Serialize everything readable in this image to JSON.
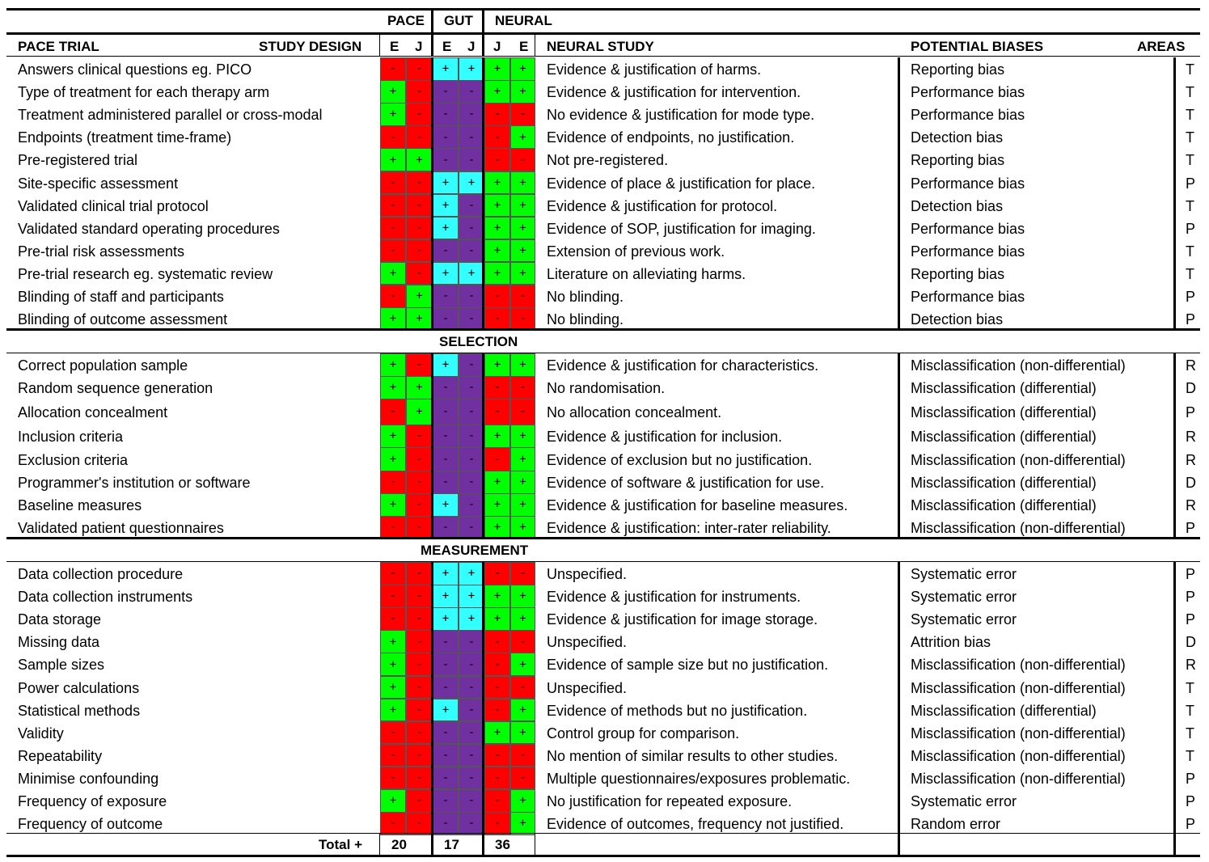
{
  "top_groups": {
    "pace": "PACE",
    "gut": "GUT",
    "neural": "NEURAL"
  },
  "headers": {
    "pace_trial": "PACE TRIAL",
    "study_design": "STUDY DESIGN",
    "e1": "E",
    "j1": "J",
    "e2": "E",
    "j2": "J",
    "j3": "J",
    "e3": "E",
    "neural_study": "NEURAL STUDY",
    "potential_biases": "POTENTIAL BIASES",
    "areas": "AREAS"
  },
  "colors": {
    "red": "#ff0000",
    "green": "#00ff00",
    "cyan": "#33ffff",
    "purple": "#7030a0",
    "line": "#000000"
  },
  "sections": [
    {
      "title": "",
      "rows": [
        {
          "label": "Answers clinical questions eg. PICO",
          "marks": [
            "-",
            "-",
            "+",
            "+",
            "+",
            "+"
          ],
          "neural": "Evidence & justification of harms.",
          "bias": "Reporting bias",
          "area": "T"
        },
        {
          "label": "Type of treatment for each therapy arm",
          "marks": [
            "+",
            "-",
            "-",
            "-",
            "+",
            "+"
          ],
          "neural": "Evidence & justification for intervention.",
          "bias": "Performance bias",
          "area": "T"
        },
        {
          "label": "Treatment administered parallel or cross-modal",
          "marks": [
            "+",
            "-",
            "-",
            "-",
            "-",
            "-"
          ],
          "neural": "No evidence & justification for mode type.",
          "bias": "Performance bias",
          "area": "T"
        },
        {
          "label": "Endpoints (treatment time-frame)",
          "marks": [
            "-",
            "-",
            "-",
            "-",
            "-",
            "+"
          ],
          "neural": "Evidence of endpoints, no justification.",
          "bias": "Detection bias",
          "area": "T"
        },
        {
          "label": "Pre-registered trial",
          "marks": [
            "+",
            "+",
            "-",
            "-",
            "-",
            "-"
          ],
          "neural": "Not pre-registered.",
          "bias": "Reporting bias",
          "area": "T"
        },
        {
          "label": "Site-specific assessment",
          "marks": [
            "-",
            "-",
            "+",
            "+",
            "+",
            "+"
          ],
          "neural": "Evidence of place & justification for place.",
          "bias": "Performance bias",
          "area": "P"
        },
        {
          "label": "Validated clinical trial protocol",
          "marks": [
            "-",
            "-",
            "+",
            "-",
            "+",
            "+"
          ],
          "neural": "Evidence & justification for protocol.",
          "bias": "Detection bias",
          "area": "T"
        },
        {
          "label": "Validated standard operating procedures",
          "marks": [
            "-",
            "-",
            "+",
            "-",
            "+",
            "+"
          ],
          "neural": "Evidence of SOP, justification for imaging.",
          "bias": "Performance bias",
          "area": "P"
        },
        {
          "label": "Pre-trial risk assessments",
          "marks": [
            "-",
            "-",
            "-",
            "-",
            "+",
            "+"
          ],
          "neural": "Extension of previous work.",
          "bias": "Performance bias",
          "area": "T"
        },
        {
          "label": "Pre-trial research eg. systematic review",
          "marks": [
            "+",
            "-",
            "+",
            "+",
            "+",
            "+"
          ],
          "neural": "Literature on alleviating harms.",
          "bias": "Reporting bias",
          "area": "T"
        },
        {
          "label": "Blinding of staff and participants",
          "marks": [
            "-",
            "+",
            "-",
            "-",
            "-",
            "-"
          ],
          "neural": "No blinding.",
          "bias": "Performance bias",
          "area": "P"
        },
        {
          "label": "Blinding of outcome assessment",
          "marks": [
            "+",
            "+",
            "-",
            "-",
            "-",
            "-"
          ],
          "neural": "No blinding.",
          "bias": "Detection bias",
          "area": "P"
        }
      ]
    },
    {
      "title": "SELECTION",
      "rows": [
        {
          "label": "Correct population sample",
          "marks": [
            "+",
            "-",
            "+",
            "-",
            "+",
            "+"
          ],
          "neural": "Evidence & justification for characteristics.",
          "bias": "Misclassification (non-differential)",
          "area": "R"
        },
        {
          "label": "Random sequence generation",
          "marks": [
            "+",
            "+",
            "-",
            "-",
            "-",
            "-"
          ],
          "neural": "No randomisation.",
          "bias": "Misclassification (differential)",
          "area": "D"
        },
        {
          "label": "Allocation concealment",
          "marks": [
            "-",
            "+",
            "-",
            "-",
            "-",
            "-"
          ],
          "neural": "No allocation concealment.",
          "bias": "Misclassification (differential)",
          "area": "P"
        },
        {
          "label": "Inclusion criteria",
          "marks": [
            "+",
            "-",
            "-",
            "-",
            "+",
            "+"
          ],
          "neural": "Evidence & justification for inclusion.",
          "bias": "Misclassification (differential)",
          "area": "R"
        },
        {
          "label": "Exclusion criteria",
          "marks": [
            "+",
            "-",
            "-",
            "-",
            "-",
            "+"
          ],
          "neural": "Evidence of exclusion but no justification.",
          "bias": "Misclassification (non-differential)",
          "area": "R"
        },
        {
          "label": "Programmer's institution or software",
          "marks": [
            "-",
            "-",
            "-",
            "-",
            "+",
            "+"
          ],
          "neural": "Evidence of software & justification for use.",
          "bias": "Misclassification (differential)",
          "area": "D"
        },
        {
          "label": "Baseline measures",
          "marks": [
            "+",
            "-",
            "+",
            "-",
            "+",
            "+"
          ],
          "neural": "Evidence & justification for baseline measures.",
          "bias": "Misclassification (differential)",
          "area": "R"
        },
        {
          "label": "Validated patient questionnaires",
          "marks": [
            "-",
            "-",
            "-",
            "-",
            "+",
            "+"
          ],
          "neural": "Evidence & justification: inter-rater reliability.",
          "bias": "Misclassification (non-differential)",
          "area": "P"
        }
      ]
    },
    {
      "title": "MEASUREMENT",
      "rows": [
        {
          "label": "Data collection procedure",
          "marks": [
            "-",
            "-",
            "+",
            "+",
            "-",
            "-"
          ],
          "neural": "Unspecified.",
          "bias": "Systematic error",
          "area": "P"
        },
        {
          "label": "Data collection instruments",
          "marks": [
            "-",
            "-",
            "+",
            "+",
            "+",
            "+"
          ],
          "neural": "Evidence & justification for instruments.",
          "bias": "Systematic error",
          "area": "P"
        },
        {
          "label": "Data storage",
          "marks": [
            "-",
            "-",
            "+",
            "+",
            "+",
            "+"
          ],
          "neural": "Evidence & justification for image storage.",
          "bias": "Systematic error",
          "area": "P"
        },
        {
          "label": "Missing data",
          "marks": [
            "+",
            "-",
            "-",
            "-",
            "-",
            "-"
          ],
          "neural": "Unspecified.",
          "bias": "Attrition bias",
          "area": "D"
        },
        {
          "label": "Sample sizes",
          "marks": [
            "+",
            "-",
            "-",
            "-",
            "-",
            "+"
          ],
          "neural": "Evidence of sample size but no justification.",
          "bias": "Misclassification (non-differential)",
          "area": "R"
        },
        {
          "label": "Power calculations",
          "marks": [
            "+",
            "-",
            "-",
            "-",
            "-",
            "-"
          ],
          "neural": "Unspecified.",
          "bias": "Misclassification (non-differential)",
          "area": "T"
        },
        {
          "label": "Statistical methods",
          "marks": [
            "+",
            "-",
            "+",
            "-",
            "-",
            "+"
          ],
          "neural": "Evidence of methods but no justification.",
          "bias": "Misclassification (differential)",
          "area": "T"
        },
        {
          "label": "Validity",
          "marks": [
            "-",
            "-",
            "-",
            "-",
            "+",
            "+"
          ],
          "neural": "Control group for comparison.",
          "bias": "Misclassification (non-differential)",
          "area": "T"
        },
        {
          "label": "Repeatability",
          "marks": [
            "-",
            "-",
            "-",
            "-",
            "-",
            "-"
          ],
          "neural": "No mention of similar results to other studies.",
          "bias": "Misclassification (non-differential)",
          "area": "T"
        },
        {
          "label": "Minimise confounding",
          "marks": [
            "-",
            "-",
            "-",
            "-",
            "-",
            "-"
          ],
          "neural": "Multiple questionnaires/exposures problematic.",
          "bias": "Misclassification (non-differential)",
          "area": "P"
        },
        {
          "label": "Frequency of exposure",
          "marks": [
            "+",
            "-",
            "-",
            "-",
            "-",
            "+"
          ],
          "neural": "No justification for repeated exposure.",
          "bias": "Systematic error",
          "area": "P"
        },
        {
          "label": "Frequency of outcome",
          "marks": [
            "-",
            "-",
            "-",
            "-",
            "-",
            "+"
          ],
          "neural": "Evidence of outcomes, frequency not justified.",
          "bias": "Random error",
          "area": "P"
        }
      ]
    }
  ],
  "totals": {
    "label": "Total +",
    "pace": "20",
    "gut": "17",
    "neural": "36"
  }
}
